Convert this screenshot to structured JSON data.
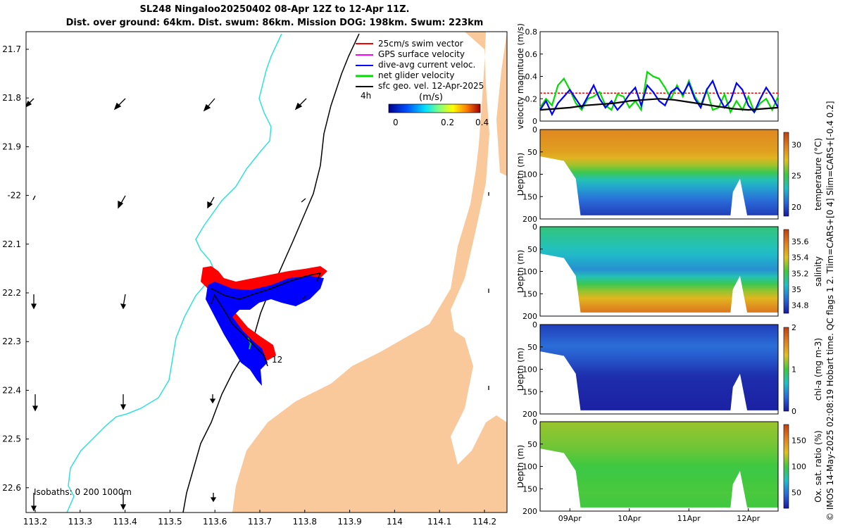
{
  "header": {
    "title_line1": "SL248 Ningaloo20250402 08-Apr 12Z to 12-Apr 11Z.",
    "title_line2": "Dist. over ground: 64km. Dist. swum: 86km. Mission DOG: 198km. Swum: 223km"
  },
  "credit": "© IMOS 14-May-2025 02:08:19 Hobart time. QC flags 1  2. Tlim=CARS+[0 4] Slim=CARS+[-0.4 0.2]",
  "map": {
    "lat_ticks": [
      "21.7",
      "21.8",
      "21.9",
      "-22",
      "22.1",
      "22.2",
      "22.3",
      "22.4",
      "22.5",
      "22.6"
    ],
    "lon_ticks": [
      "113.2",
      "113.3",
      "113.4",
      "113.5",
      "113.6",
      "113.7",
      "113.8",
      "113.9",
      "114",
      "114.1",
      "114.2"
    ],
    "isobaths_label": "Isobaths: 0   200  1000m",
    "end_day_label": "12",
    "colors": {
      "land": "#f9c89b",
      "isobath_200": "#2fe0e0",
      "isobath_1000": "#000000",
      "swim_vector": "#ff0000",
      "dive_avg": "#0000ff",
      "glider_net": "#00dd00"
    },
    "legend": {
      "items": [
        {
          "label": "25cm/s swim vector",
          "color": "#ff0000"
        },
        {
          "label": "GPS surface velocity",
          "color": "#ff00ff"
        },
        {
          "label": "dive-avg current veloc.",
          "color": "#0000ff"
        },
        {
          "label": "net glider velocity",
          "color": "#00dd00"
        },
        {
          "label": "sfc geo. vel. 12-Apr-2025",
          "color": "#000000"
        }
      ],
      "scale_label": "4h",
      "colorbar_title": "(m/s)",
      "colorbar_ticks": [
        "0",
        "0.2",
        "0.4"
      ]
    }
  },
  "chart_data": [
    {
      "type": "line",
      "title": "",
      "ylabel": "velocity magnitude (m/s)",
      "ylim": [
        0,
        0.8
      ],
      "yticks": [
        "0",
        "0.2",
        "0.4",
        "0.6",
        "0.8"
      ],
      "x_range_days": [
        8.5,
        12.5
      ],
      "series": [
        {
          "name": "swim vector 25cm/s",
          "color": "#ff0000",
          "x": [
            8.5,
            12.5
          ],
          "values": [
            0.25,
            0.25
          ]
        },
        {
          "name": "net glider velocity",
          "color": "#00dd00",
          "x": [
            8.5,
            8.6,
            8.7,
            8.8,
            8.9,
            9.0,
            9.1,
            9.2,
            9.3,
            9.4,
            9.5,
            9.6,
            9.7,
            9.8,
            9.9,
            10.0,
            10.1,
            10.2,
            10.3,
            10.4,
            10.5,
            10.6,
            10.7,
            10.8,
            10.9,
            11.0,
            11.1,
            11.2,
            11.3,
            11.4,
            11.5,
            11.6,
            11.7,
            11.8,
            11.9,
            12.0,
            12.1,
            12.2,
            12.3,
            12.4,
            12.5
          ],
          "values": [
            0.12,
            0.2,
            0.14,
            0.32,
            0.38,
            0.28,
            0.16,
            0.1,
            0.2,
            0.22,
            0.26,
            0.14,
            0.1,
            0.24,
            0.22,
            0.12,
            0.18,
            0.1,
            0.44,
            0.4,
            0.38,
            0.3,
            0.2,
            0.32,
            0.22,
            0.36,
            0.22,
            0.14,
            0.28,
            0.1,
            0.12,
            0.24,
            0.08,
            0.18,
            0.1,
            0.22,
            0.08,
            0.16,
            0.2,
            0.1,
            0.22
          ]
        },
        {
          "name": "dive-avg current veloc.",
          "color": "#0000ff",
          "x": [
            8.5,
            8.6,
            8.7,
            8.8,
            8.9,
            9.0,
            9.1,
            9.2,
            9.3,
            9.4,
            9.5,
            9.6,
            9.7,
            9.8,
            9.9,
            10.0,
            10.1,
            10.2,
            10.3,
            10.4,
            10.5,
            10.6,
            10.7,
            10.8,
            10.9,
            11.0,
            11.1,
            11.2,
            11.3,
            11.4,
            11.5,
            11.6,
            11.7,
            11.8,
            11.9,
            12.0,
            12.1,
            12.2,
            12.3,
            12.4,
            12.5
          ],
          "values": [
            0.1,
            0.18,
            0.06,
            0.16,
            0.22,
            0.28,
            0.2,
            0.12,
            0.22,
            0.32,
            0.2,
            0.12,
            0.18,
            0.1,
            0.16,
            0.24,
            0.3,
            0.14,
            0.32,
            0.26,
            0.18,
            0.14,
            0.26,
            0.3,
            0.24,
            0.34,
            0.2,
            0.12,
            0.28,
            0.36,
            0.22,
            0.12,
            0.18,
            0.34,
            0.28,
            0.14,
            0.08,
            0.2,
            0.3,
            0.22,
            0.12
          ]
        },
        {
          "name": "sfc geo. velocity",
          "color": "#000000",
          "x": [
            8.5,
            8.75,
            9.0,
            9.25,
            9.5,
            9.75,
            10.0,
            10.25,
            10.5,
            10.75,
            11.0,
            11.25,
            11.5,
            11.75,
            12.0,
            12.25,
            12.5
          ],
          "values": [
            0.1,
            0.11,
            0.12,
            0.14,
            0.15,
            0.16,
            0.18,
            0.19,
            0.2,
            0.19,
            0.17,
            0.15,
            0.13,
            0.11,
            0.1,
            0.11,
            0.12
          ]
        }
      ]
    },
    {
      "type": "heatmap",
      "ylabel": "Depth (m)",
      "yticks": [
        "0",
        "50",
        "100",
        "150",
        "200"
      ],
      "ylim": [
        200,
        0
      ],
      "colorbar_label": "temperature (°C)",
      "colorbar_ticks": [
        "20",
        "25",
        "30"
      ],
      "colormap": [
        "#1a1a9e",
        "#2a6ad8",
        "#20c0c8",
        "#40c840",
        "#e0c020",
        "#e08020",
        "#c04010"
      ],
      "value_range": [
        18.5,
        32
      ],
      "layers": [
        {
          "depth": 0,
          "value": 29.5
        },
        {
          "depth": 60,
          "value": 28.5
        },
        {
          "depth": 90,
          "value": 26
        },
        {
          "depth": 120,
          "value": 23
        },
        {
          "depth": 160,
          "value": 21
        },
        {
          "depth": 200,
          "value": 19.5
        }
      ]
    },
    {
      "type": "heatmap",
      "ylabel": "Depth (m)",
      "yticks": [
        "0",
        "50",
        "100",
        "150",
        "200"
      ],
      "ylim": [
        200,
        0
      ],
      "colorbar_label": "salinity",
      "colorbar_ticks": [
        "34.8",
        "35",
        "35.2",
        "35.4",
        "35.6"
      ],
      "colormap": [
        "#1a1a9e",
        "#2a6ad8",
        "#20c0c8",
        "#40c840",
        "#e0c020",
        "#e08020",
        "#c04010"
      ],
      "value_range": [
        34.7,
        35.75
      ],
      "layers": [
        {
          "depth": 0,
          "value": 35.15
        },
        {
          "depth": 60,
          "value": 35.05
        },
        {
          "depth": 100,
          "value": 34.95
        },
        {
          "depth": 140,
          "value": 35.25
        },
        {
          "depth": 170,
          "value": 35.45
        },
        {
          "depth": 200,
          "value": 35.6
        }
      ]
    },
    {
      "type": "heatmap",
      "ylabel": "Depth (m)",
      "yticks": [
        "0",
        "50",
        "100",
        "150",
        "200"
      ],
      "ylim": [
        200,
        0
      ],
      "colorbar_label": "chl-a (mg m-3)",
      "colorbar_ticks": [
        "0",
        "1",
        "2"
      ],
      "colormap": [
        "#1a1a9e",
        "#2a6ad8",
        "#20c0c8",
        "#40c840",
        "#e0c020",
        "#e08020",
        "#c04010"
      ],
      "value_range": [
        0,
        2
      ],
      "layers": [
        {
          "depth": 0,
          "value": 0.15
        },
        {
          "depth": 50,
          "value": 0.35
        },
        {
          "depth": 80,
          "value": 0.25
        },
        {
          "depth": 120,
          "value": 0.08
        },
        {
          "depth": 200,
          "value": 0.03
        }
      ]
    },
    {
      "type": "heatmap",
      "ylabel": "Depth (m)",
      "yticks": [
        "0",
        "50",
        "100",
        "150",
        "200"
      ],
      "ylim": [
        200,
        0
      ],
      "colorbar_label": "Ox. sat. ratio (%)",
      "colorbar_ticks": [
        "50",
        "100",
        "150"
      ],
      "colormap": [
        "#1a1a9e",
        "#2a6ad8",
        "#20c0c8",
        "#40c840",
        "#e0c020",
        "#e08020",
        "#c04010"
      ],
      "value_range": [
        20,
        180
      ],
      "layers": [
        {
          "depth": 0,
          "value": 115
        },
        {
          "depth": 60,
          "value": 108
        },
        {
          "depth": 110,
          "value": 98
        },
        {
          "depth": 160,
          "value": 102
        },
        {
          "depth": 200,
          "value": 100
        }
      ],
      "xticks": [
        "09Apr",
        "10Apr",
        "11Apr",
        "12Apr"
      ]
    }
  ]
}
